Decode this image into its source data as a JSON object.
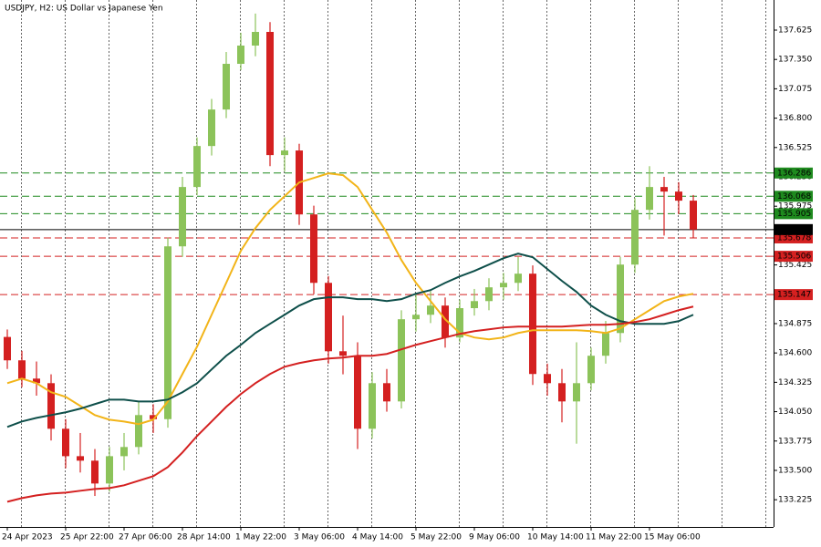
{
  "chart_data": {
    "type": "candlestick",
    "title": "USDJPY, H2:  US Dollar vs Japanese Yen",
    "categories": [
      "24 Apr 2023",
      null,
      null,
      null,
      "25 Apr 22:00",
      null,
      null,
      null,
      "27 Apr 06:00",
      null,
      null,
      null,
      "28 Apr 14:00",
      null,
      null,
      null,
      "1 May 22:00",
      null,
      null,
      null,
      "3 May 06:00",
      null,
      null,
      null,
      "4 May 14:00",
      null,
      null,
      null,
      "5 May 22:00",
      null,
      null,
      null,
      "9 May 06:00",
      null,
      null,
      null,
      "10 May 14:00",
      null,
      null,
      null,
      "11 May 22:00",
      null,
      null,
      null,
      "15 May 06:00",
      null,
      null,
      null
    ],
    "open": [
      134.75,
      134.531,
      134.36,
      134.317,
      133.89,
      133.633,
      133.591,
      133.377,
      133.633,
      133.719,
      134.018,
      133.98,
      135.599,
      136.155,
      136.539,
      136.881,
      137.309,
      137.48,
      137.608,
      136.454,
      136.497,
      135.898,
      135.257,
      134.616,
      134.574,
      133.89,
      134.317,
      134.146,
      134.916,
      134.958,
      135.044,
      134.745,
      135.02,
      135.086,
      135.215,
      135.257,
      135.343,
      134.403,
      134.317,
      134.146,
      134.317,
      134.574,
      134.787,
      135.428,
      135.941,
      136.155,
      136.112,
      136.027
    ],
    "high": [
      134.82,
      134.62,
      134.52,
      134.4,
      133.98,
      133.85,
      133.7,
      133.72,
      133.85,
      134.15,
      134.12,
      135.68,
      136.25,
      136.62,
      136.98,
      137.42,
      137.6,
      137.78,
      137.7,
      136.62,
      136.56,
      135.98,
      135.32,
      134.95,
      134.7,
      134.42,
      134.45,
      135.0,
      135.15,
      135.18,
      135.12,
      135.1,
      135.2,
      135.3,
      135.35,
      135.5,
      135.42,
      134.5,
      134.45,
      134.7,
      134.65,
      134.9,
      135.5,
      136.05,
      136.35,
      136.25,
      136.2,
      136.08
    ],
    "low": [
      134.45,
      134.28,
      134.2,
      133.78,
      133.52,
      133.48,
      133.26,
      133.3,
      133.5,
      133.65,
      133.85,
      133.9,
      135.5,
      136.08,
      136.45,
      136.8,
      137.25,
      137.38,
      136.35,
      136.3,
      135.8,
      135.15,
      134.5,
      134.4,
      133.7,
      133.8,
      134.05,
      134.08,
      134.8,
      134.88,
      134.65,
      134.7,
      134.95,
      135.0,
      135.1,
      135.18,
      134.3,
      134.2,
      133.95,
      133.75,
      134.25,
      134.5,
      134.7,
      135.35,
      135.85,
      135.7,
      135.9,
      135.68
    ],
    "close": [
      134.531,
      134.36,
      134.317,
      133.89,
      133.633,
      133.591,
      133.377,
      133.633,
      133.719,
      134.018,
      133.98,
      135.599,
      136.155,
      136.539,
      136.881,
      137.309,
      137.48,
      137.608,
      136.454,
      136.497,
      135.898,
      135.257,
      134.616,
      134.574,
      133.89,
      134.317,
      134.146,
      134.916,
      134.958,
      135.044,
      134.745,
      135.02,
      135.086,
      135.215,
      135.257,
      135.343,
      134.403,
      134.317,
      134.146,
      134.317,
      134.574,
      134.787,
      135.428,
      135.941,
      136.155,
      136.112,
      136.027,
      135.756
    ],
    "up_color": "#8cc35a",
    "down_color": "#d42020",
    "series": [
      {
        "color": "#f2b418",
        "values": [
          134.317,
          134.36,
          134.317,
          134.232,
          134.189,
          134.104,
          134.018,
          133.975,
          133.958,
          133.933,
          133.975,
          134.146,
          134.403,
          134.659,
          134.958,
          135.257,
          135.557,
          135.77,
          135.941,
          136.069,
          136.198,
          136.24,
          136.283,
          136.266,
          136.155,
          135.941,
          135.728,
          135.471,
          135.257,
          135.086,
          134.916,
          134.787,
          134.745,
          134.728,
          134.745,
          134.787,
          134.813,
          134.813,
          134.813,
          134.813,
          134.804,
          134.787,
          134.83,
          134.916,
          135.001,
          135.086,
          135.129,
          135.155
        ]
      },
      {
        "color": "#0e4f4a",
        "values": [
          133.907,
          133.958,
          133.992,
          134.018,
          134.044,
          134.078,
          134.121,
          134.163,
          134.163,
          134.146,
          134.146,
          134.163,
          134.232,
          134.317,
          134.446,
          134.574,
          134.676,
          134.787,
          134.873,
          134.958,
          135.044,
          135.104,
          135.121,
          135.121,
          135.104,
          135.104,
          135.086,
          135.104,
          135.155,
          135.189,
          135.257,
          135.317,
          135.369,
          135.428,
          135.488,
          135.531,
          135.497,
          135.386,
          135.275,
          135.172,
          135.044,
          134.958,
          134.898,
          134.873,
          134.873,
          134.873,
          134.898,
          134.958
        ]
      },
      {
        "color": "#d42020",
        "values": [
          133.206,
          133.24,
          133.266,
          133.283,
          133.291,
          133.309,
          133.326,
          133.334,
          133.36,
          133.403,
          133.445,
          133.531,
          133.668,
          133.822,
          133.958,
          134.095,
          134.215,
          134.317,
          134.403,
          134.471,
          134.505,
          134.531,
          134.548,
          134.557,
          134.574,
          134.574,
          134.591,
          134.634,
          134.676,
          134.711,
          134.745,
          134.779,
          134.804,
          134.821,
          134.839,
          134.847,
          134.847,
          134.847,
          134.847,
          134.856,
          134.864,
          134.864,
          134.873,
          134.89,
          134.916,
          134.958,
          135.001,
          135.035
        ]
      }
    ],
    "levels": [
      {
        "value": 136.286,
        "color": "#1e8a1e",
        "style": "dashed"
      },
      {
        "value": 136.068,
        "color": "#1e8a1e",
        "style": "dashed"
      },
      {
        "value": 135.905,
        "color": "#1e8a1e",
        "style": "dashed"
      },
      {
        "value": 135.678,
        "color": "#d42020",
        "style": "dashed"
      },
      {
        "value": 135.506,
        "color": "#d42020",
        "style": "dashed"
      },
      {
        "value": 135.147,
        "color": "#d42020",
        "style": "dashed"
      },
      {
        "value": 135.756,
        "color": "#000000",
        "style": "solid"
      }
    ],
    "ylim": [
      132.97,
      137.907
    ],
    "yticks": [
      137.625,
      {
        "value": 137.35,
        "label": "137.350"
      },
      137.075,
      {
        "value": 136.8,
        "label": "136.800"
      },
      136.525,
      {
        "value": 136.25,
        "label": "136.250"
      },
      135.975,
      {
        "value": 135.7,
        "label": "135.700"
      },
      135.425,
      {
        "value": 135.15,
        "label": "135.150"
      },
      134.875,
      {
        "value": 134.6,
        "label": "134.600"
      },
      134.325,
      {
        "value": 134.05,
        "label": "134.050"
      },
      133.775,
      {
        "value": 133.5,
        "label": "133.500"
      },
      133.225
    ]
  }
}
